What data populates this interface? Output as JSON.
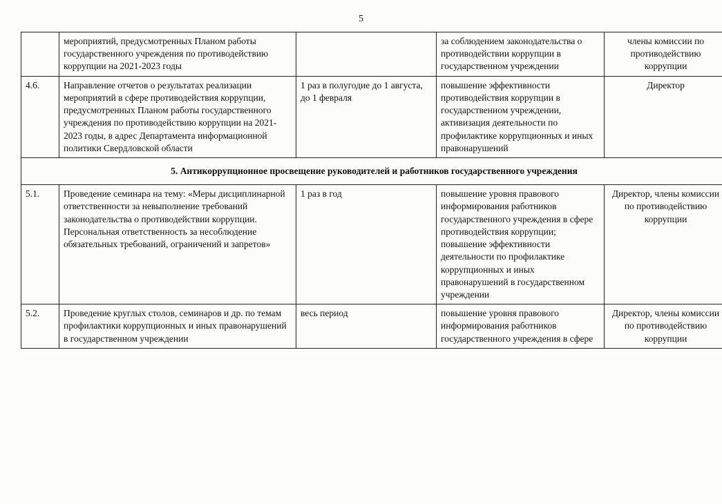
{
  "page_number": "5",
  "table": {
    "columns": {
      "num_width": 42,
      "activity_width": 330,
      "timing_width": 190,
      "outcome_width": 230,
      "responsible_width": 165
    },
    "border_color": "#222222",
    "font_family": "Times New Roman",
    "font_size_pt": 11,
    "background_color": "#fcfcfa",
    "text_color": "#111111",
    "rows": [
      {
        "type": "data",
        "num": "",
        "activity": "мероприятий, предусмотренных Планом работы государственного учреждения по противодействию коррупции на 2021-2023 годы",
        "timing": "",
        "outcome": "за соблюдением законодательства о противодействии коррупции в государственном учреждении",
        "responsible": "члены комиссии по противодействию коррупции"
      },
      {
        "type": "data",
        "num": "4.6.",
        "activity": "Направление отчетов о результатах реализации мероприятий в сфере противодействия коррупции, предусмотренных Планом работы государственного учреждения по противодействию коррупции на 2021-2023 годы, в адрес Департамента информационной политики Свердловской области",
        "timing": "1 раз в полугодие до 1 августа, до 1 февраля",
        "outcome": "повышение эффективности противодействия коррупции в государственном учреждении, активизация деятельности по профилактике коррупционных и иных правонарушений",
        "responsible": "Директор"
      },
      {
        "type": "section",
        "label": "5. Антикоррупционное просвещение руководителей и работников государственного учреждения"
      },
      {
        "type": "data",
        "num": "5.1.",
        "activity": "Проведение семинара на тему: «Меры дисциплинарной ответственности за невыполнение требований законодательства о противодействии коррупции. Персональная ответственность за несоблюдение обязательных требований, ограничений и запретов»",
        "timing": "1 раз в год",
        "outcome": "повышение уровня правового информирования работников государственного учреждения в сфере противодействия коррупции; повышение эффективности деятельности по профилактике коррупционных и иных правонарушений в государственном учреждении",
        "responsible": "Директор, члены комиссии по противодействию коррупции"
      },
      {
        "type": "data",
        "num": "5.2.",
        "activity": "Проведение круглых столов, семинаров и др. по темам профилактики коррупционных и иных правонарушений в государственном учреждении",
        "timing": "весь период",
        "outcome": "повышение уровня правового информирования работников государственного учреждения в сфере",
        "responsible": "Директор, члены комиссии по противодействию коррупции"
      }
    ]
  }
}
